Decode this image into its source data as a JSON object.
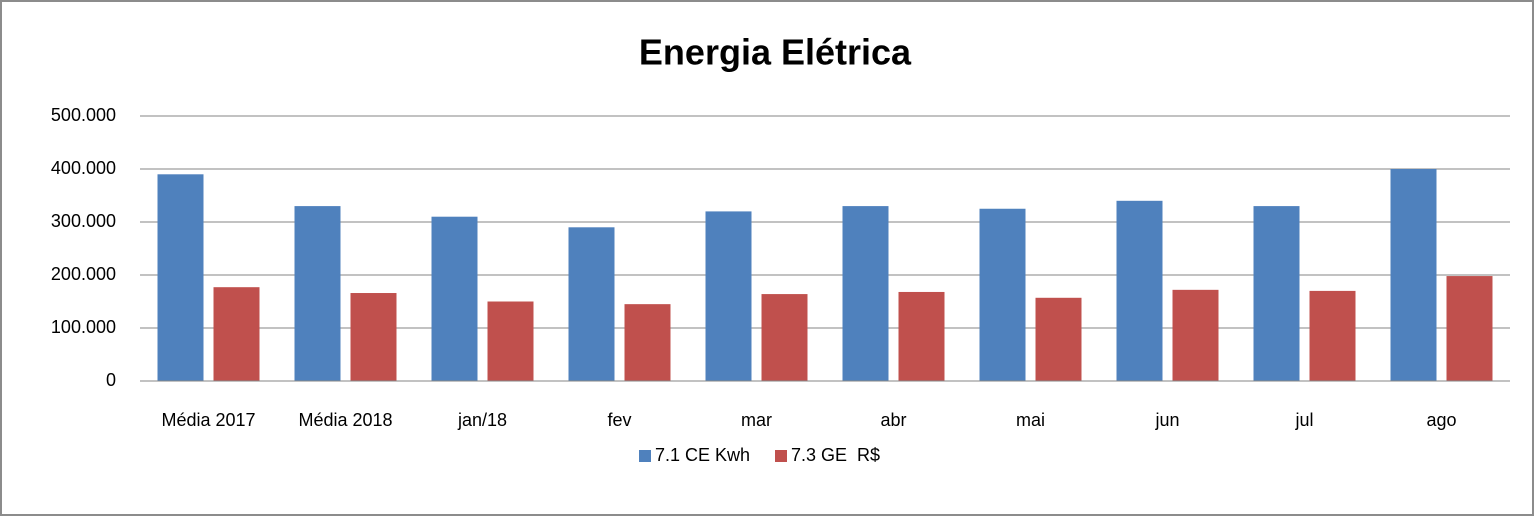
{
  "chart_data": {
    "type": "bar",
    "title": "Energia Elétrica",
    "categories": [
      "Média 2017",
      "Média 2018",
      "jan/18",
      "fev",
      "mar",
      "abr",
      "mai",
      "jun",
      "jul",
      "ago"
    ],
    "series": [
      {
        "name": "7.1 CE Kwh",
        "color": "#4f81bd",
        "values": [
          390000,
          330000,
          310000,
          290000,
          320000,
          330000,
          325000,
          340000,
          330000,
          400000
        ]
      },
      {
        "name": "7.3 GE  R$",
        "color": "#c0504d",
        "values": [
          177000,
          166000,
          150000,
          145000,
          164000,
          168000,
          157000,
          172000,
          170000,
          198000
        ]
      }
    ],
    "ylim": [
      0,
      500000
    ],
    "yticks": [
      0,
      {
        "value": 100000,
        "label": "100.000"
      },
      {
        "value": 200000,
        "label": "200.000"
      },
      {
        "value": 300000,
        "label": "300.000"
      },
      {
        "value": 400000,
        "label": "400.000"
      },
      {
        "value": 500000,
        "label": "500.000"
      }
    ],
    "grid": true,
    "legend": "bottom"
  }
}
